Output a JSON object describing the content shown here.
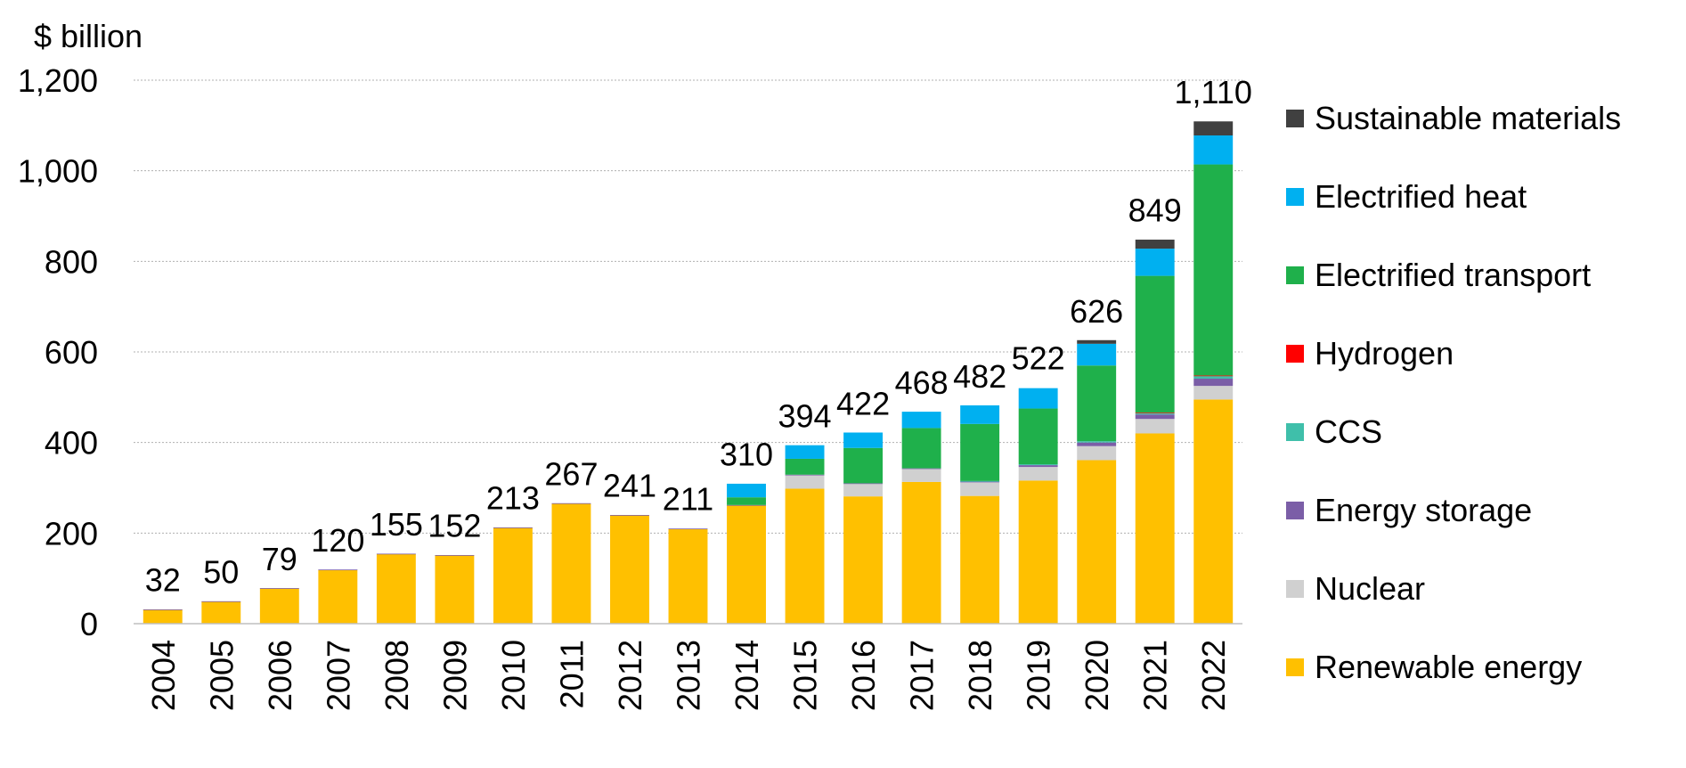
{
  "chart_data": {
    "type": "bar",
    "stacked": true,
    "ylabel": "$ billion",
    "ylim": [
      0,
      1200
    ],
    "yticks": [
      0,
      200,
      400,
      600,
      800,
      1000,
      1200
    ],
    "ytick_labels": [
      "0",
      "200",
      "400",
      "600",
      "800",
      "1,000",
      "1,200"
    ],
    "grid": true,
    "legend_position": "right",
    "categories": [
      "2004",
      "2005",
      "2006",
      "2007",
      "2008",
      "2009",
      "2010",
      "2011",
      "2012",
      "2013",
      "2014",
      "2015",
      "2016",
      "2017",
      "2018",
      "2019",
      "2020",
      "2021",
      "2022"
    ],
    "totals": [
      32,
      50,
      79,
      120,
      155,
      152,
      213,
      267,
      241,
      211,
      310,
      394,
      422,
      468,
      482,
      522,
      626,
      849,
      1110
    ],
    "total_labels": [
      "32",
      "50",
      "79",
      "120",
      "155",
      "152",
      "213",
      "267",
      "241",
      "211",
      "310",
      "394",
      "422",
      "468",
      "482",
      "522",
      "626",
      "849",
      "1,110"
    ],
    "series": [
      {
        "name": "Renewable energy",
        "color": "#FFC000",
        "values": [
          31,
          49,
          78,
          119,
          154,
          151,
          212,
          265,
          239,
          209,
          261,
          298,
          281,
          313,
          282,
          316,
          361,
          420,
          495
        ]
      },
      {
        "name": "Nuclear",
        "color": "#D0D0D0",
        "values": [
          0,
          0,
          0,
          0,
          0,
          0,
          0,
          0,
          0,
          0,
          0,
          30,
          28,
          29,
          30,
          30,
          31,
          32,
          30
        ]
      },
      {
        "name": "Energy storage",
        "color": "#7B5EA7",
        "values": [
          0.5,
          0.5,
          0.5,
          0.5,
          0.5,
          0.5,
          0.5,
          1,
          1,
          1,
          1,
          1,
          1,
          1,
          2,
          4,
          8,
          10,
          16
        ]
      },
      {
        "name": "CCS",
        "color": "#3FBFAA",
        "values": [
          0,
          0,
          0,
          0,
          0,
          0,
          0,
          0,
          0,
          0,
          0,
          0,
          0,
          0,
          1,
          2,
          3,
          3,
          6
        ]
      },
      {
        "name": "Hydrogen",
        "color": "#FF0000",
        "values": [
          0,
          0,
          0,
          0,
          0,
          0,
          0,
          0,
          0,
          0,
          0,
          0,
          0,
          0,
          0,
          0,
          0,
          1,
          1
        ]
      },
      {
        "name": "Electrified transport",
        "color": "#1FB04B",
        "values": [
          0,
          0,
          0,
          0,
          0,
          0,
          0,
          0,
          0,
          0,
          17,
          35,
          78,
          89,
          126,
          123,
          167,
          302,
          466
        ]
      },
      {
        "name": "Electrified heat",
        "color": "#00B0F0",
        "values": [
          0,
          0,
          0,
          0,
          0,
          0,
          0,
          0,
          0,
          0,
          30,
          30,
          34,
          36,
          41,
          45,
          48,
          60,
          64
        ]
      },
      {
        "name": "Sustainable materials",
        "color": "#404040",
        "values": [
          0,
          0,
          0,
          0,
          0,
          0,
          0,
          0,
          0,
          0,
          0,
          0,
          0,
          0,
          0,
          0,
          8,
          20,
          31
        ]
      }
    ],
    "legend_order": [
      "Sustainable materials",
      "Electrified heat",
      "Electrified transport",
      "Hydrogen",
      "CCS",
      "Energy storage",
      "Nuclear",
      "Renewable energy"
    ]
  }
}
